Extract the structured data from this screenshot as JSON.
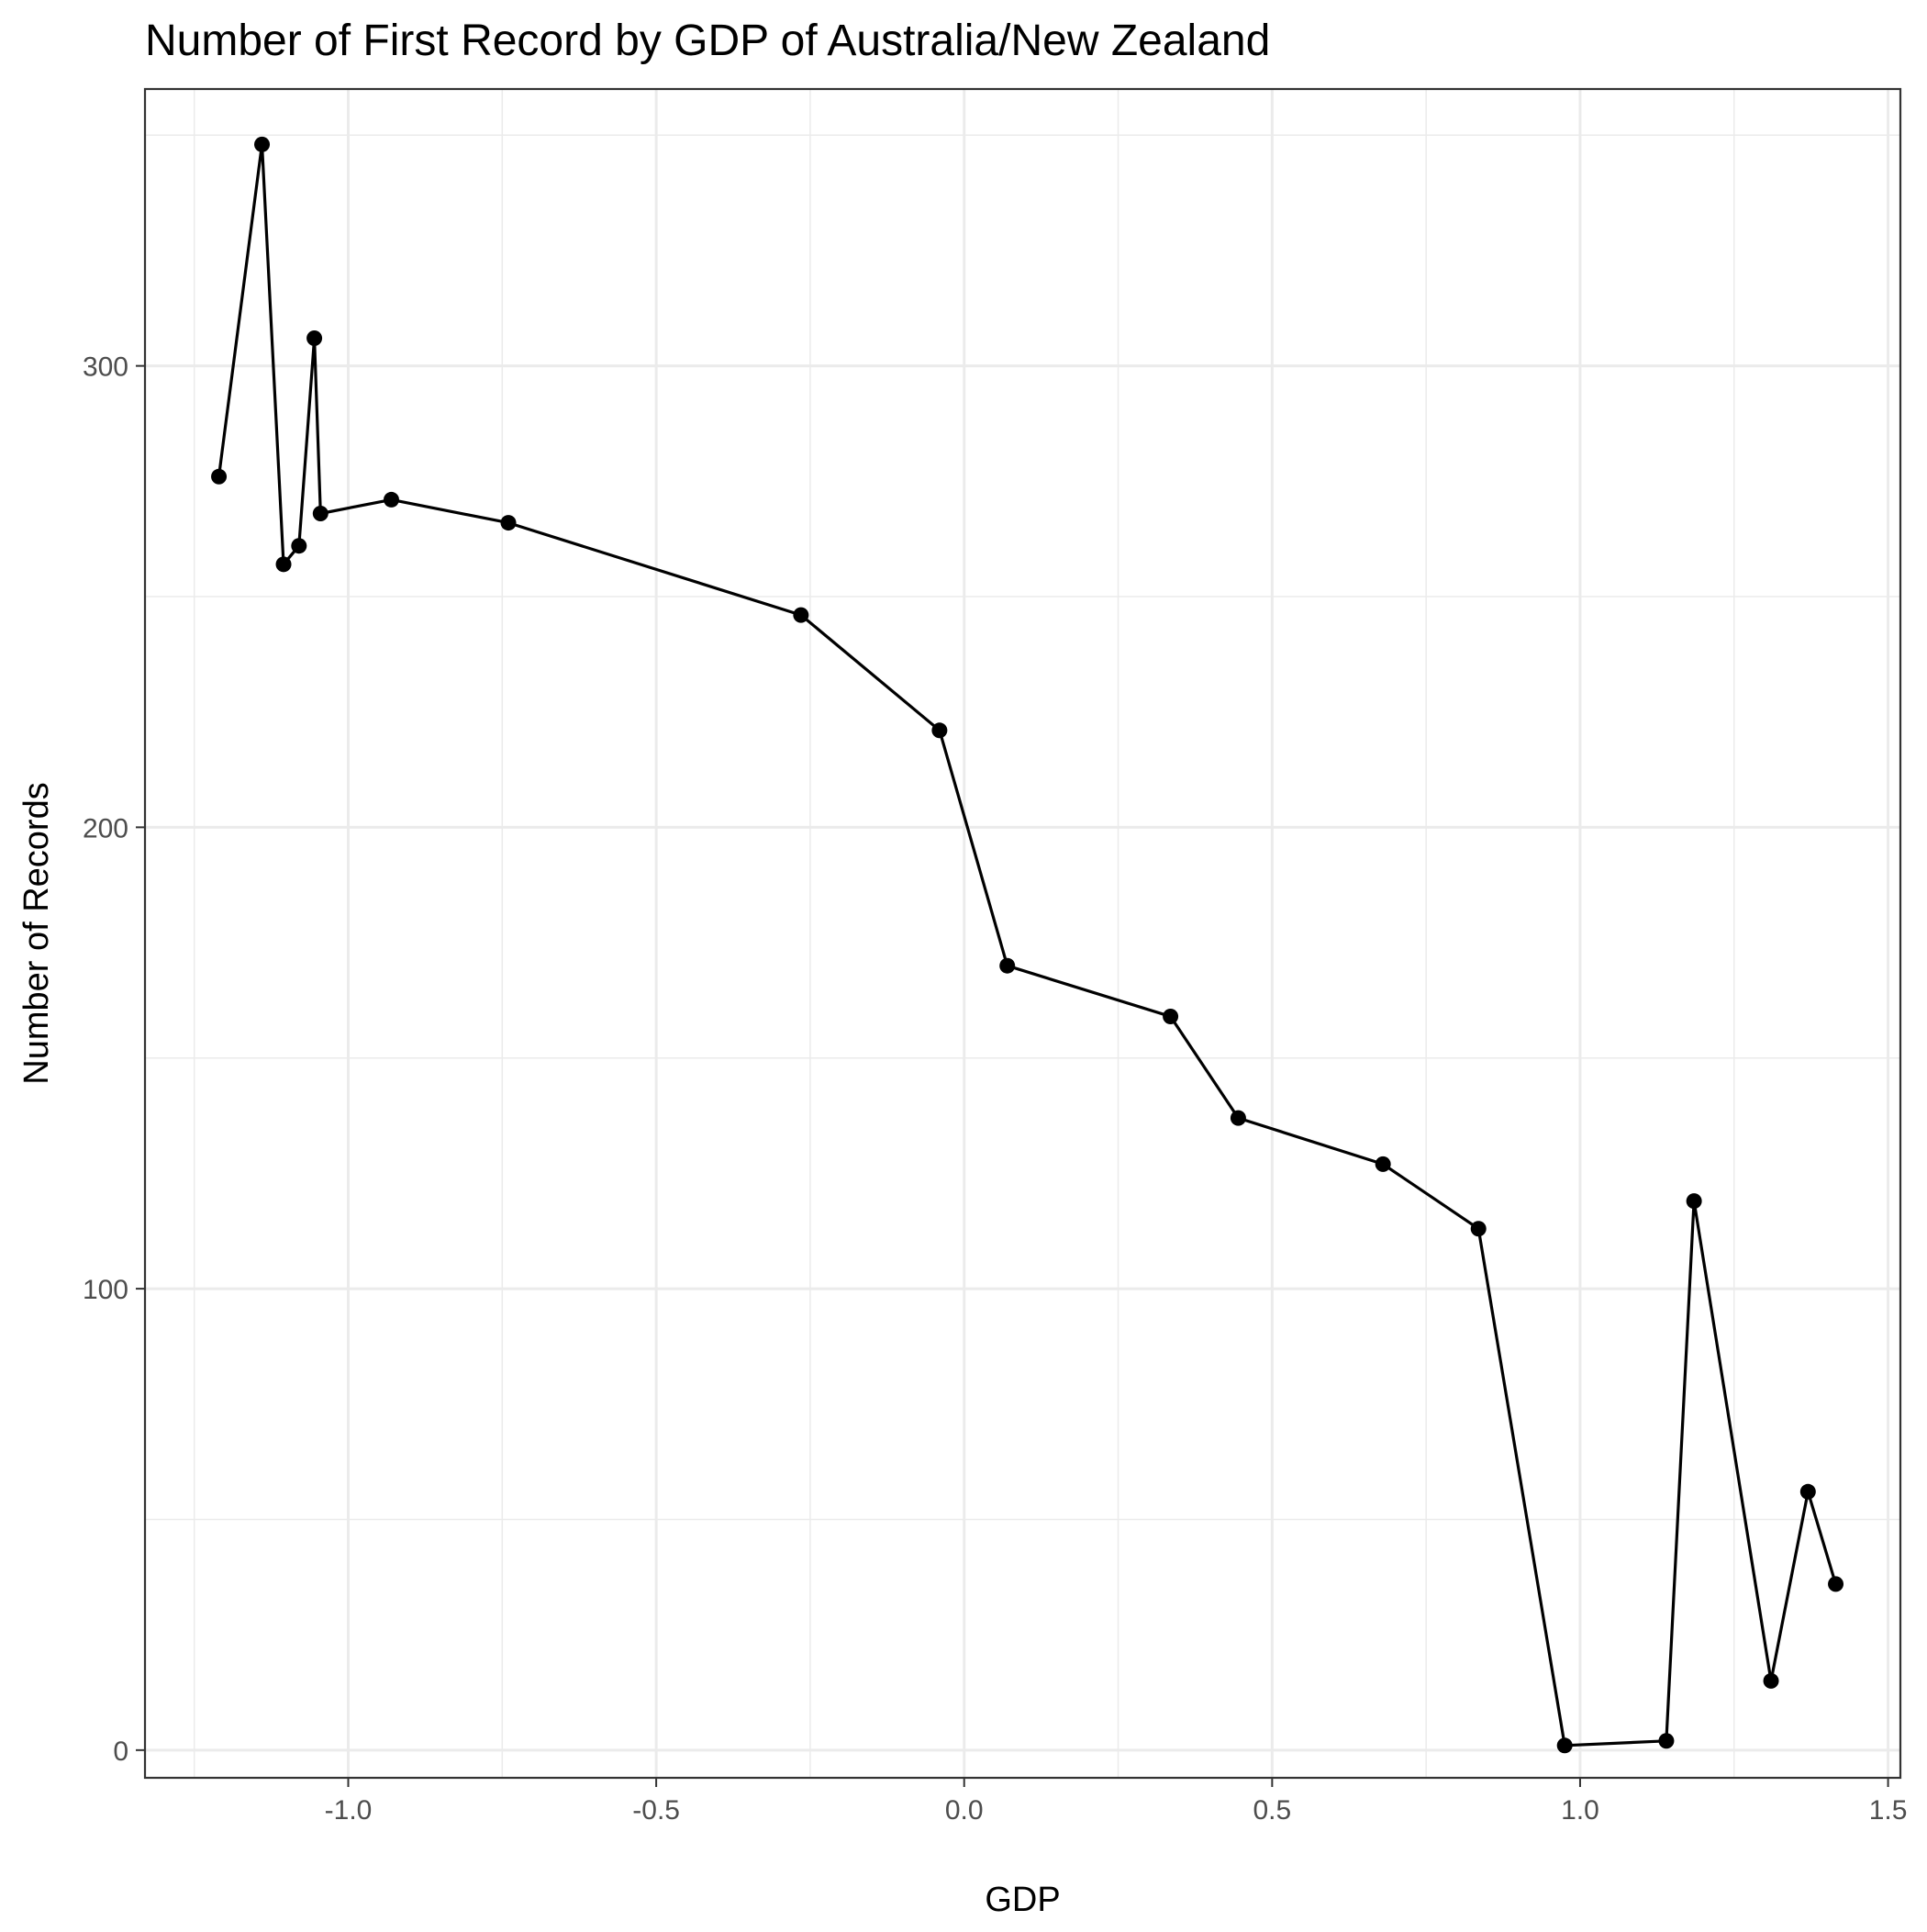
{
  "chart_data": {
    "type": "line",
    "title": "Number of First Record by GDP of Australia/New Zealand",
    "xlabel": "GDP",
    "ylabel": "Number of Records",
    "xlim": [
      -1.33,
      1.52
    ],
    "ylim": [
      -6,
      360
    ],
    "x_ticks": [
      -1.0,
      -0.5,
      0.0,
      0.5,
      1.0,
      1.5
    ],
    "x_tick_labels": [
      "-1.0",
      "-0.5",
      "0.0",
      "0.5",
      "1.0",
      "1.5"
    ],
    "x_minor_ticks": [
      -1.25,
      -0.75,
      -0.25,
      0.25,
      0.75,
      1.25
    ],
    "y_ticks": [
      0,
      100,
      200,
      300
    ],
    "y_tick_labels": [
      "0",
      "100",
      "200",
      "300"
    ],
    "y_minor_ticks": [
      50,
      150,
      250,
      350
    ],
    "grid": true,
    "legend": "none",
    "series": [
      {
        "x": [
          -1.21,
          -1.14,
          -1.105,
          -1.08,
          -1.055,
          -1.045,
          -0.93,
          -0.74,
          -0.265,
          -0.04,
          0.07,
          0.335,
          0.445,
          0.68,
          0.835,
          0.975,
          1.14,
          1.185,
          1.31,
          1.37,
          1.415
        ],
        "y": [
          276,
          348,
          257,
          261,
          306,
          268,
          271,
          266,
          246,
          221,
          170,
          159,
          137,
          127,
          113,
          1,
          2,
          119,
          15,
          56,
          36
        ]
      }
    ]
  }
}
